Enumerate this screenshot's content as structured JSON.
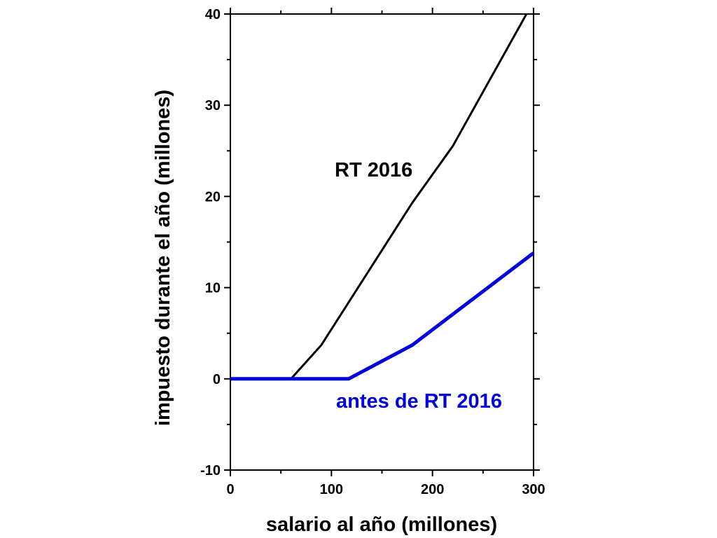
{
  "chart_data": {
    "type": "line",
    "xlabel": "salario al año (millones)",
    "ylabel": "impuesto durante el año (millones)",
    "xlim": [
      0,
      300
    ],
    "ylim": [
      -10,
      40
    ],
    "x_ticks": [
      0,
      100,
      200,
      300
    ],
    "y_ticks": [
      -10,
      0,
      10,
      20,
      30,
      40
    ],
    "grid": false,
    "legend": "none",
    "series": [
      {
        "name": "RT 2016",
        "color": "#000000",
        "points": [
          [
            0,
            0
          ],
          [
            60,
            0
          ],
          [
            90,
            3.7
          ],
          [
            180,
            19.3
          ],
          [
            220,
            25.5
          ],
          [
            293,
            40
          ]
        ]
      },
      {
        "name": "antes de RT 2016",
        "color": "#0000dd",
        "points": [
          [
            0,
            0
          ],
          [
            117,
            0
          ],
          [
            180,
            3.7
          ],
          [
            300,
            13.8
          ]
        ]
      }
    ]
  }
}
